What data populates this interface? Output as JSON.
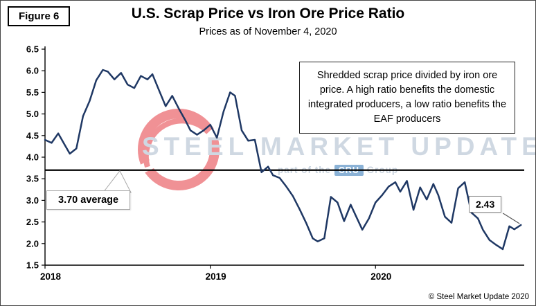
{
  "figure_label": "Figure 6",
  "title": "U.S. Scrap Price vs Iron Ore Price Ratio",
  "subtitle": "Prices as of November 4, 2020",
  "annotation": "Shredded scrap price divided by iron ore price. A high ratio benefits the domestic integrated producers, a low ratio benefits the EAF producers",
  "average_callout": "3.70 average",
  "endpoint_callout": "2.43",
  "watermark": {
    "text": "STEEL MARKET UPDATE",
    "sub_prefix": "part of the",
    "sub_box": "CRU",
    "sub_suffix": "Group",
    "logo_color": "#e5393f",
    "text_color": "#a9b9cc"
  },
  "copyright": "© Steel Market Update 2020",
  "chart_data": {
    "type": "line",
    "title": "U.S. Scrap Price vs Iron Ore Price Ratio",
    "subtitle": "Prices as of November 4, 2020",
    "xlabel": "",
    "ylabel": "",
    "ylim": [
      1.5,
      6.5
    ],
    "ytick_step": 0.5,
    "xlim": [
      2018,
      2020.9
    ],
    "x_ticks": [
      {
        "value": 2018,
        "label": "2018"
      },
      {
        "value": 2019,
        "label": "2019"
      },
      {
        "value": 2020,
        "label": "2020"
      }
    ],
    "grid": false,
    "legend": false,
    "average": 3.7,
    "last_value": 2.43,
    "line_color": "#1f3864",
    "average_line_color": "#000000",
    "series": [
      {
        "name": "Shredded scrap price / iron ore price ratio",
        "x": [
          2018.0,
          2018.04,
          2018.08,
          2018.12,
          2018.15,
          2018.19,
          2018.23,
          2018.27,
          2018.31,
          2018.35,
          2018.38,
          2018.42,
          2018.46,
          2018.5,
          2018.54,
          2018.58,
          2018.62,
          2018.65,
          2018.69,
          2018.73,
          2018.77,
          2018.81,
          2018.85,
          2018.88,
          2018.92,
          2018.96,
          2019.0,
          2019.04,
          2019.08,
          2019.12,
          2019.15,
          2019.19,
          2019.23,
          2019.27,
          2019.31,
          2019.35,
          2019.38,
          2019.42,
          2019.46,
          2019.5,
          2019.54,
          2019.58,
          2019.62,
          2019.65,
          2019.69,
          2019.73,
          2019.77,
          2019.81,
          2019.85,
          2019.88,
          2019.92,
          2019.96,
          2020.0,
          2020.04,
          2020.08,
          2020.12,
          2020.15,
          2020.19,
          2020.23,
          2020.27,
          2020.31,
          2020.35,
          2020.38,
          2020.42,
          2020.46,
          2020.5,
          2020.54,
          2020.58,
          2020.62,
          2020.65,
          2020.69,
          2020.73,
          2020.77,
          2020.81,
          2020.84,
          2020.88
        ],
        "values": [
          4.4,
          4.33,
          4.55,
          4.28,
          4.08,
          4.2,
          4.95,
          5.3,
          5.78,
          6.02,
          5.98,
          5.8,
          5.95,
          5.68,
          5.6,
          5.88,
          5.8,
          5.92,
          5.55,
          5.18,
          5.42,
          5.12,
          4.85,
          4.62,
          4.52,
          4.62,
          4.75,
          4.45,
          5.05,
          5.5,
          5.42,
          4.62,
          4.38,
          4.4,
          3.65,
          3.78,
          3.58,
          3.52,
          3.32,
          3.1,
          2.8,
          2.48,
          2.12,
          2.05,
          2.12,
          3.08,
          2.95,
          2.52,
          2.9,
          2.65,
          2.32,
          2.58,
          2.95,
          3.12,
          3.32,
          3.42,
          3.2,
          3.45,
          2.78,
          3.3,
          3.02,
          3.38,
          3.12,
          2.62,
          2.48,
          3.28,
          3.42,
          2.72,
          2.58,
          2.32,
          2.08,
          1.97,
          1.87,
          2.4,
          2.33,
          2.43
        ]
      }
    ]
  }
}
